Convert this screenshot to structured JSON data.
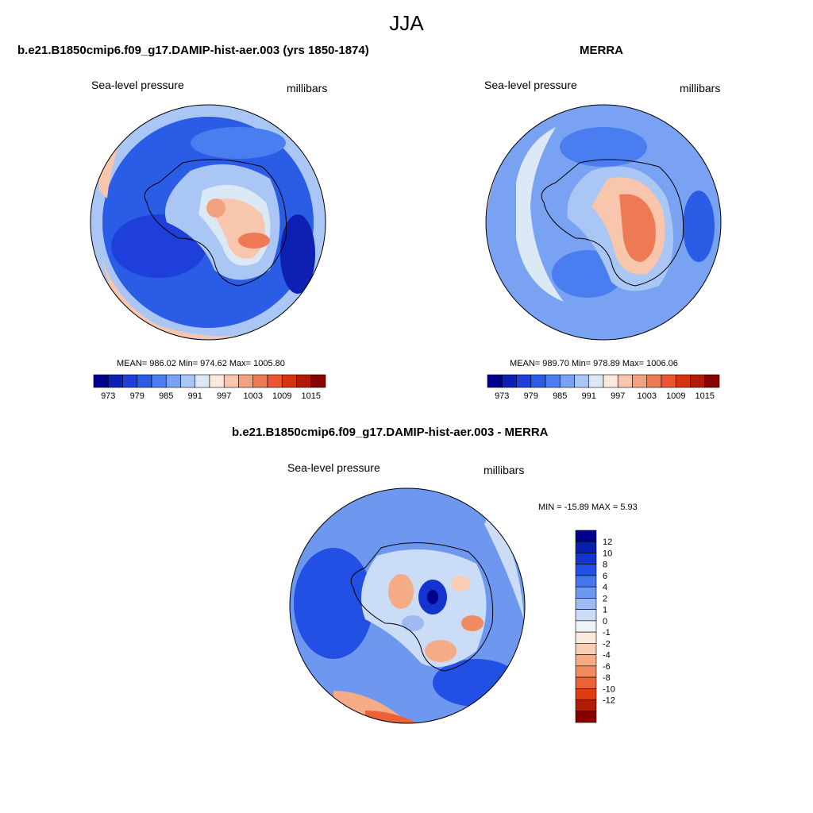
{
  "season": "JJA",
  "panels": {
    "model": {
      "title": "b.e21.B1850cmip6.f09_g17.DAMIP-hist-aer.003 (yrs 1850-1874)",
      "variable": "Sea-level pressure",
      "units": "millibars",
      "stats": "MEAN= 986.02  Min= 974.62  Max= 1005.80"
    },
    "obs": {
      "title": "MERRA",
      "variable": "Sea-level pressure",
      "units": "millibars",
      "stats": "MEAN= 989.70  Min= 978.89  Max= 1006.06"
    },
    "diff": {
      "title": "b.e21.B1850cmip6.f09_g17.DAMIP-hist-aer.003 - MERRA",
      "variable": "Sea-level pressure",
      "units": "millibars",
      "stats": "MIN = -15.89 MAX =   5.93"
    }
  },
  "abs_colorbar": {
    "colors": [
      "#00008c",
      "#0e1fb4",
      "#1f3fdc",
      "#2b5ce6",
      "#4a7ef0",
      "#7aa2f3",
      "#aac6f5",
      "#dbe8f6",
      "#fde9dc",
      "#f8c6ad",
      "#f3a27f",
      "#ee7a55",
      "#e8552e",
      "#d4350f",
      "#b01c06",
      "#880000"
    ],
    "labels": [
      "973",
      "979",
      "985",
      "991",
      "997",
      "1003",
      "1009",
      "1015"
    ]
  },
  "diff_colorbar": {
    "colors": [
      "#00008c",
      "#0a1fb0",
      "#1434d0",
      "#2350e4",
      "#4477ee",
      "#6e98f0",
      "#9dbaf3",
      "#cadcf6",
      "#eef3f8",
      "#fde9dc",
      "#f9cdb2",
      "#f6ab87",
      "#f18a5e",
      "#ec6236",
      "#dc3e12",
      "#b11d04",
      "#880000"
    ],
    "labels": [
      "12",
      "10",
      "8",
      "6",
      "4",
      "2",
      "1",
      "0",
      "-1",
      "-2",
      "-4",
      "-6",
      "-8",
      "-10",
      "-12"
    ]
  }
}
